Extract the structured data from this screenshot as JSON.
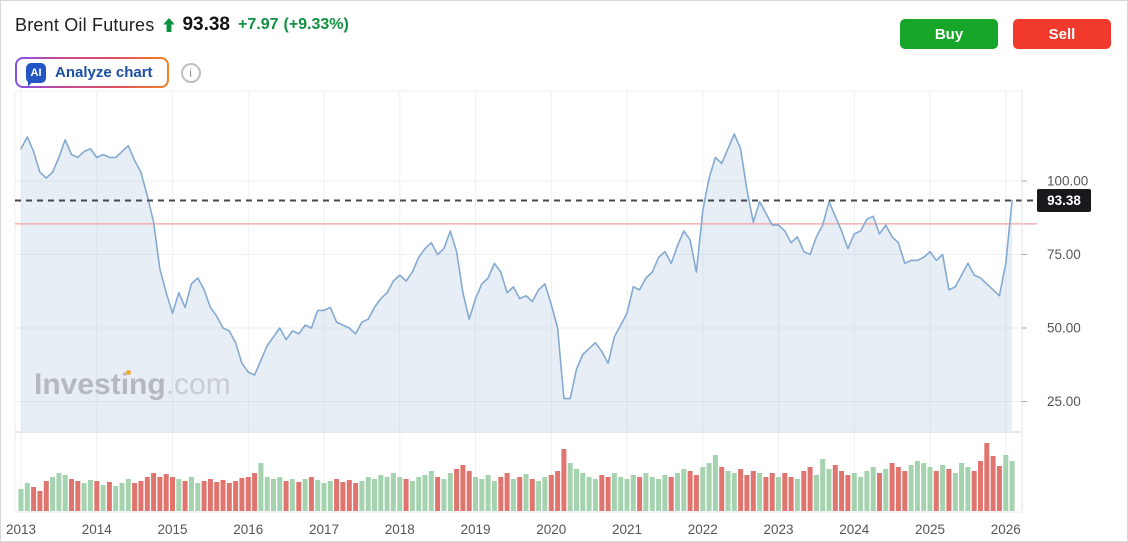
{
  "header": {
    "title": "Brent Oil Futures",
    "price": "93.38",
    "change": "+7.97",
    "change_pct": "(+9.33%)",
    "up_color": "#0e9240"
  },
  "trade": {
    "buy_label": "Buy",
    "sell_label": "Sell",
    "buy_color": "#17a62a",
    "sell_color": "#f1392c"
  },
  "toolbar": {
    "analyze_label": "Analyze chart",
    "ai_badge": "AI",
    "info_glyph": "i"
  },
  "icons": {
    "direction": "up-arrow-icon",
    "analyze": "ai-chat-icon",
    "info": "info-icon"
  },
  "watermark": {
    "brand": "Investing",
    "tld": ".com"
  },
  "chart_data": {
    "type": "area",
    "series_name": "Brent Oil Futures monthly price",
    "x_unit": "month",
    "x_start": "2013-01",
    "x_end": "2026-02",
    "grid": true,
    "legend": "none",
    "year_ticks": [
      {
        "year": 2013,
        "label": "2013"
      },
      {
        "year": 2014,
        "label": "2014"
      },
      {
        "year": 2015,
        "label": "2015"
      },
      {
        "year": 2016,
        "label": "2016"
      },
      {
        "year": 2017,
        "label": "2017"
      },
      {
        "year": 2018,
        "label": "2018"
      },
      {
        "year": 2019,
        "label": "2019"
      },
      {
        "year": 2020,
        "label": "2020"
      },
      {
        "year": 2021,
        "label": "2021"
      },
      {
        "year": 2022,
        "label": "2022"
      },
      {
        "year": 2023,
        "label": "2023"
      },
      {
        "year": 2024,
        "label": "2024"
      },
      {
        "year": 2025,
        "label": "2025"
      },
      {
        "year": 2026,
        "label": "2026"
      }
    ],
    "y_ticks": [
      {
        "value": 100,
        "label": "100.00"
      },
      {
        "value": 75,
        "label": "75.00"
      },
      {
        "value": 50,
        "label": "50.00"
      },
      {
        "value": 25,
        "label": "25.00"
      }
    ],
    "ylim": [
      12,
      131
    ],
    "last_price": 93.38,
    "last_price_label": "93.38",
    "current_price_line": 93.38,
    "reference_line": {
      "value": 85.4,
      "color": "#f2a2a2"
    },
    "price_line_color": "#84aad2",
    "area_fill_color": "rgba(133,171,211,0.20)",
    "dashed_line_color": "#45494e",
    "prices": [
      111,
      115,
      110,
      103,
      101,
      103,
      108,
      114,
      109,
      108,
      110,
      111,
      108,
      109,
      108,
      108,
      110,
      112,
      107,
      103,
      95,
      86,
      70,
      62,
      55,
      62,
      57,
      65,
      67,
      63,
      57,
      54,
      50,
      49,
      45,
      38,
      35,
      34,
      39,
      44,
      47,
      50,
      46,
      49,
      48,
      51,
      50,
      56,
      56,
      57,
      52,
      51,
      50,
      48,
      52,
      53,
      57,
      60,
      62,
      66,
      68,
      66,
      69,
      74,
      77,
      79,
      75,
      77,
      83,
      76,
      62,
      53,
      60,
      65,
      67,
      72,
      69,
      62,
      64,
      60,
      61,
      59,
      63,
      65,
      58,
      50,
      26,
      26,
      36,
      41,
      43,
      45,
      42,
      38,
      47,
      51,
      55,
      64,
      63,
      67,
      69,
      74,
      76,
      72,
      78,
      83,
      80,
      69,
      90,
      101,
      108,
      106,
      111,
      116,
      111,
      97,
      86,
      93,
      89,
      85,
      85,
      83,
      79,
      81,
      76,
      75,
      81,
      85,
      93,
      88,
      83,
      77,
      82,
      83,
      87,
      88,
      82,
      85,
      81,
      79,
      72,
      73,
      73,
      74,
      76,
      73,
      75,
      63,
      64,
      68,
      72,
      68,
      67,
      65,
      63,
      61,
      72,
      93.38
    ],
    "volume_bars": {
      "up_color": "#a6d3af",
      "down_color": "#e0746f",
      "heights": [
        22,
        28,
        24,
        20,
        30,
        34,
        38,
        36,
        32,
        30,
        28,
        31,
        30,
        26,
        29,
        25,
        28,
        32,
        28,
        30,
        34,
        38,
        34,
        37,
        34,
        32,
        30,
        34,
        28,
        30,
        32,
        29,
        31,
        28,
        30,
        33,
        34,
        38,
        48,
        34,
        32,
        34,
        30,
        32,
        29,
        32,
        34,
        31,
        28,
        30,
        32,
        29,
        31,
        28,
        30,
        34,
        32,
        36,
        34,
        38,
        34,
        32,
        30,
        34,
        36,
        40,
        34,
        32,
        38,
        42,
        46,
        40,
        34,
        32,
        36,
        30,
        34,
        38,
        32,
        34,
        37,
        32,
        30,
        34,
        36,
        40,
        62,
        48,
        42,
        38,
        34,
        32,
        36,
        34,
        38,
        34,
        32,
        36,
        34,
        38,
        34,
        32,
        36,
        34,
        38,
        42,
        40,
        36,
        44,
        48,
        56,
        44,
        40,
        38,
        42,
        36,
        40,
        38,
        34,
        38,
        34,
        38,
        34,
        32,
        40,
        44,
        36,
        52,
        42,
        46,
        40,
        36,
        38,
        34,
        40,
        44,
        38,
        42,
        48,
        44,
        40,
        46,
        50,
        48,
        44,
        40,
        46,
        42,
        38,
        48,
        44,
        40,
        50,
        68,
        55,
        45,
        56,
        50
      ]
    }
  }
}
